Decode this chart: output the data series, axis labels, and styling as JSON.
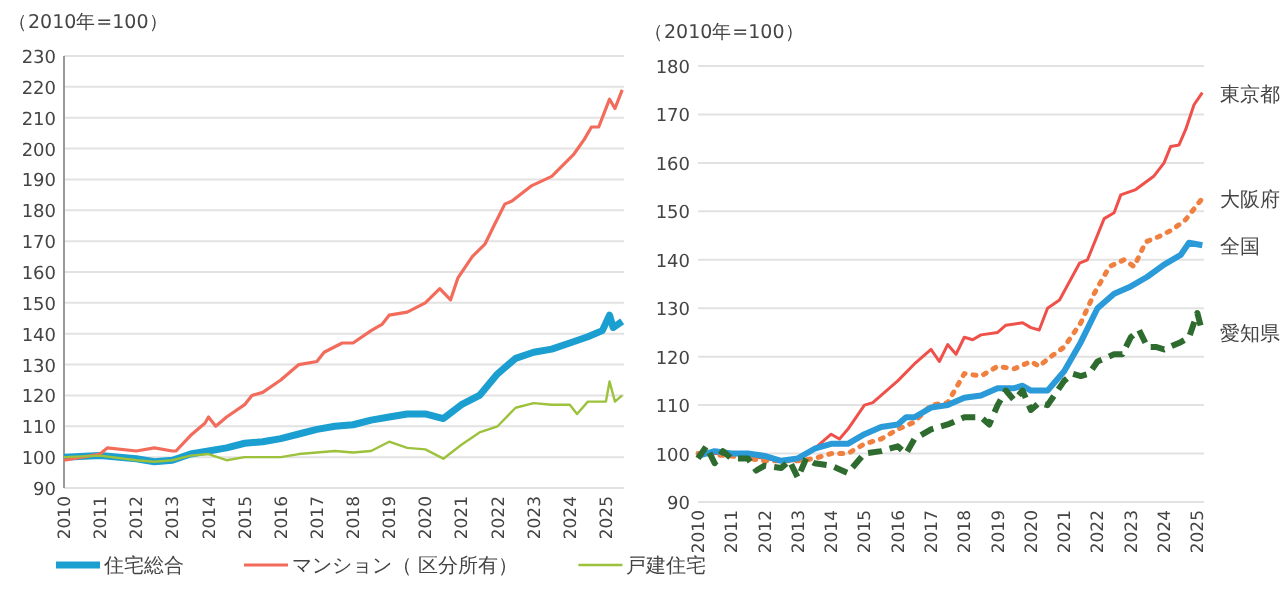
{
  "chart_data": [
    {
      "type": "line",
      "ylabel": "（2010年=100）",
      "xlim": [
        2010,
        2025.5
      ],
      "xticks": [
        2010,
        2011,
        2012,
        2013,
        2014,
        2015,
        2016,
        2017,
        2018,
        2019,
        2020,
        2021,
        2022,
        2023,
        2024,
        2025
      ],
      "ylim": [
        90,
        230
      ],
      "yticks": [
        90,
        100,
        110,
        120,
        130,
        140,
        150,
        160,
        170,
        180,
        190,
        200,
        210,
        220,
        230
      ],
      "grid": "y",
      "legend": "bottom",
      "line_style": "solid",
      "marker": "none",
      "series": [
        {
          "name": "住宅総合",
          "color": "#1a9fd0",
          "x": [
            2010,
            2011,
            2012,
            2012.5,
            2013,
            2013.5,
            2014,
            2014.5,
            2015,
            2015.5,
            2016,
            2016.5,
            2017,
            2017.5,
            2018,
            2018.5,
            2019,
            2019.5,
            2020,
            2020.5,
            2021,
            2021.5,
            2022,
            2022.5,
            2023,
            2023.5,
            2024,
            2024.5,
            2024.9,
            2025.1,
            2025.2,
            2025.45
          ],
          "values": [
            100,
            100.5,
            99.5,
            98.5,
            99,
            101,
            102,
            103,
            104.5,
            105,
            106,
            107.5,
            109,
            110,
            110.5,
            112,
            113,
            114,
            114,
            112.5,
            117,
            120,
            127,
            132,
            134,
            135,
            137,
            139,
            141,
            146,
            142,
            144
          ]
        },
        {
          "name": "マンション（ 区分所有）",
          "color": "#f26b5b",
          "x": [
            2010,
            2011,
            2011.2,
            2012,
            2012.5,
            2013,
            2013.1,
            2013.5,
            2013.9,
            2014,
            2014.2,
            2014.5,
            2015,
            2015.2,
            2015.5,
            2016,
            2016.5,
            2017,
            2017.2,
            2017.7,
            2018,
            2018.5,
            2018.8,
            2019,
            2019.5,
            2020,
            2020.4,
            2020.7,
            2020.9,
            2021.3,
            2021.65,
            2021.9,
            2022.2,
            2022.4,
            2022.95,
            2023.5,
            2024.1,
            2024.4,
            2024.6,
            2024.8,
            2025.1,
            2025.25,
            2025.45
          ],
          "values": [
            99,
            101,
            103,
            102,
            103,
            102,
            102,
            107,
            111,
            113,
            110,
            113,
            117,
            120,
            121,
            125,
            130,
            131,
            134,
            137,
            137,
            141,
            143,
            146,
            147,
            150,
            154.6,
            151,
            158,
            165,
            169,
            175,
            182,
            183,
            188,
            191,
            198,
            203,
            207,
            207,
            216,
            213,
            219
          ]
        },
        {
          "name": "戸建住宅",
          "color": "#9cc23c",
          "x": [
            2010,
            2011,
            2012,
            2012.5,
            2013,
            2013.5,
            2014,
            2014.5,
            2015,
            2015.5,
            2016,
            2016.5,
            2017,
            2017.5,
            2018,
            2018.5,
            2019,
            2019.5,
            2020,
            2020.5,
            2021,
            2021.5,
            2022,
            2022.5,
            2023,
            2023.5,
            2024,
            2024.2,
            2024.5,
            2025,
            2025.1,
            2025.25,
            2025.45
          ],
          "values": [
            100,
            100.5,
            99,
            98.5,
            99,
            100.5,
            101,
            99,
            100,
            100,
            100,
            101,
            101.5,
            102,
            101.5,
            102,
            105,
            103,
            102.5,
            99.5,
            104,
            108,
            110,
            116,
            117.5,
            117,
            117,
            114,
            118,
            118,
            124.5,
            118,
            120
          ]
        }
      ]
    },
    {
      "type": "line",
      "ylabel": "（2010年=100）",
      "xlim": [
        2010,
        2025.2
      ],
      "xticks": [
        2010,
        2011,
        2012,
        2013,
        2014,
        2015,
        2016,
        2017,
        2018,
        2019,
        2020,
        2021,
        2022,
        2023,
        2024,
        2025
      ],
      "ylim": [
        90,
        180
      ],
      "yticks": [
        90,
        100,
        110,
        120,
        130,
        140,
        150,
        160,
        170,
        180
      ],
      "grid": "y",
      "legend": false,
      "marker": "none",
      "series": [
        {
          "name": "東京都",
          "color": "#f0504a",
          "line_style": "solid",
          "x": [
            2010,
            2011,
            2012,
            2012.5,
            2013,
            2013.5,
            2014,
            2014.25,
            2014.5,
            2015,
            2015.25,
            2015.5,
            2016,
            2016.5,
            2017,
            2017.25,
            2017.5,
            2017.75,
            2018,
            2018.25,
            2018.5,
            2019,
            2019.25,
            2019.75,
            2020,
            2020.25,
            2020.5,
            2020.86,
            2021.46,
            2021.7,
            2022.2,
            2022.5,
            2022.7,
            2023.15,
            2023.7,
            2024,
            2024.2,
            2024.45,
            2024.65,
            2024.9,
            2025.15
          ],
          "values": [
            100,
            100,
            99,
            98.5,
            98.5,
            101,
            104,
            103,
            105,
            110,
            110.5,
            112,
            115,
            118.5,
            121.5,
            119,
            122.5,
            120.5,
            124,
            123.5,
            124.5,
            125,
            126.5,
            127,
            126,
            125.5,
            130,
            131.7,
            139.3,
            140,
            148.5,
            149.7,
            153.4,
            154.5,
            157.3,
            160,
            163.4,
            163.7,
            166.9,
            172,
            174.5
          ]
        },
        {
          "name": "大阪府",
          "color": "#f08040",
          "line_style": "dotted",
          "x": [
            2010,
            2011,
            2012,
            2013,
            2013.5,
            2014,
            2014.5,
            2015,
            2015.5,
            2016,
            2016.5,
            2017,
            2017.5,
            2018,
            2018.5,
            2019,
            2019.5,
            2020,
            2020.25,
            2020.5,
            2021,
            2021.5,
            2021.9,
            2022.36,
            2022.8,
            2023.1,
            2023.45,
            2023.85,
            2024.25,
            2024.65,
            2025.15
          ],
          "values": [
            100,
            99.5,
            98.5,
            98.5,
            99,
            100,
            100,
            102,
            103,
            105,
            106.5,
            110,
            110.5,
            116.5,
            116,
            118,
            117.5,
            119,
            118,
            119.5,
            122,
            127,
            133,
            138.6,
            140,
            138.6,
            143.7,
            144.8,
            146.2,
            148.3,
            152.7
          ]
        },
        {
          "name": "全国",
          "color": "#2a9ad8",
          "line_style": "solid",
          "x": [
            2010,
            2010.5,
            2011,
            2011.5,
            2012,
            2012.5,
            2013,
            2013.5,
            2014,
            2014.5,
            2015,
            2015.5,
            2016,
            2016.25,
            2016.5,
            2017,
            2017.5,
            2018,
            2018.5,
            2019,
            2019.5,
            2019.75,
            2020,
            2020.5,
            2021,
            2021.5,
            2022,
            2022.5,
            2023,
            2023.5,
            2024,
            2024.5,
            2024.75,
            2025.15
          ],
          "values": [
            99.5,
            100.5,
            100,
            100,
            99.5,
            98.5,
            99,
            101,
            102,
            102,
            104,
            105.5,
            106,
            107.5,
            107.5,
            109.5,
            110,
            111.5,
            112,
            113.5,
            113.5,
            114,
            113,
            113,
            117,
            123,
            130,
            133,
            134.5,
            136.5,
            139,
            141,
            143.5,
            143
          ]
        },
        {
          "name": "愛知県",
          "color": "#2e6b2e",
          "line_style": "dashed",
          "x": [
            2010,
            2010.25,
            2010.5,
            2010.75,
            2011,
            2011.5,
            2011.75,
            2012,
            2012.5,
            2012.75,
            2013,
            2013.25,
            2013.5,
            2014,
            2014.5,
            2014.75,
            2015,
            2015.5,
            2016,
            2016.25,
            2016.5,
            2017,
            2017.5,
            2018,
            2018.5,
            2018.75,
            2019,
            2019.25,
            2019.5,
            2019.75,
            2020,
            2020.25,
            2020.5,
            2021,
            2021.25,
            2021.5,
            2021.75,
            2022,
            2022.5,
            2022.75,
            2023,
            2023.25,
            2023.5,
            2023.75,
            2024,
            2024.5,
            2024.75,
            2025,
            2025.15
          ],
          "values": [
            99,
            101.5,
            98,
            100.5,
            99,
            99,
            96.5,
            97.5,
            97,
            98.5,
            95,
            99,
            98,
            97.5,
            96,
            98,
            100,
            100.5,
            101.5,
            100,
            103,
            105,
            106,
            107.5,
            107.5,
            106,
            110,
            113,
            111,
            113,
            109,
            110.5,
            110,
            115,
            116.5,
            116,
            116.5,
            119,
            120.5,
            120.5,
            124,
            125.5,
            122,
            122,
            121.5,
            123,
            124,
            129,
            125
          ]
        }
      ]
    }
  ]
}
